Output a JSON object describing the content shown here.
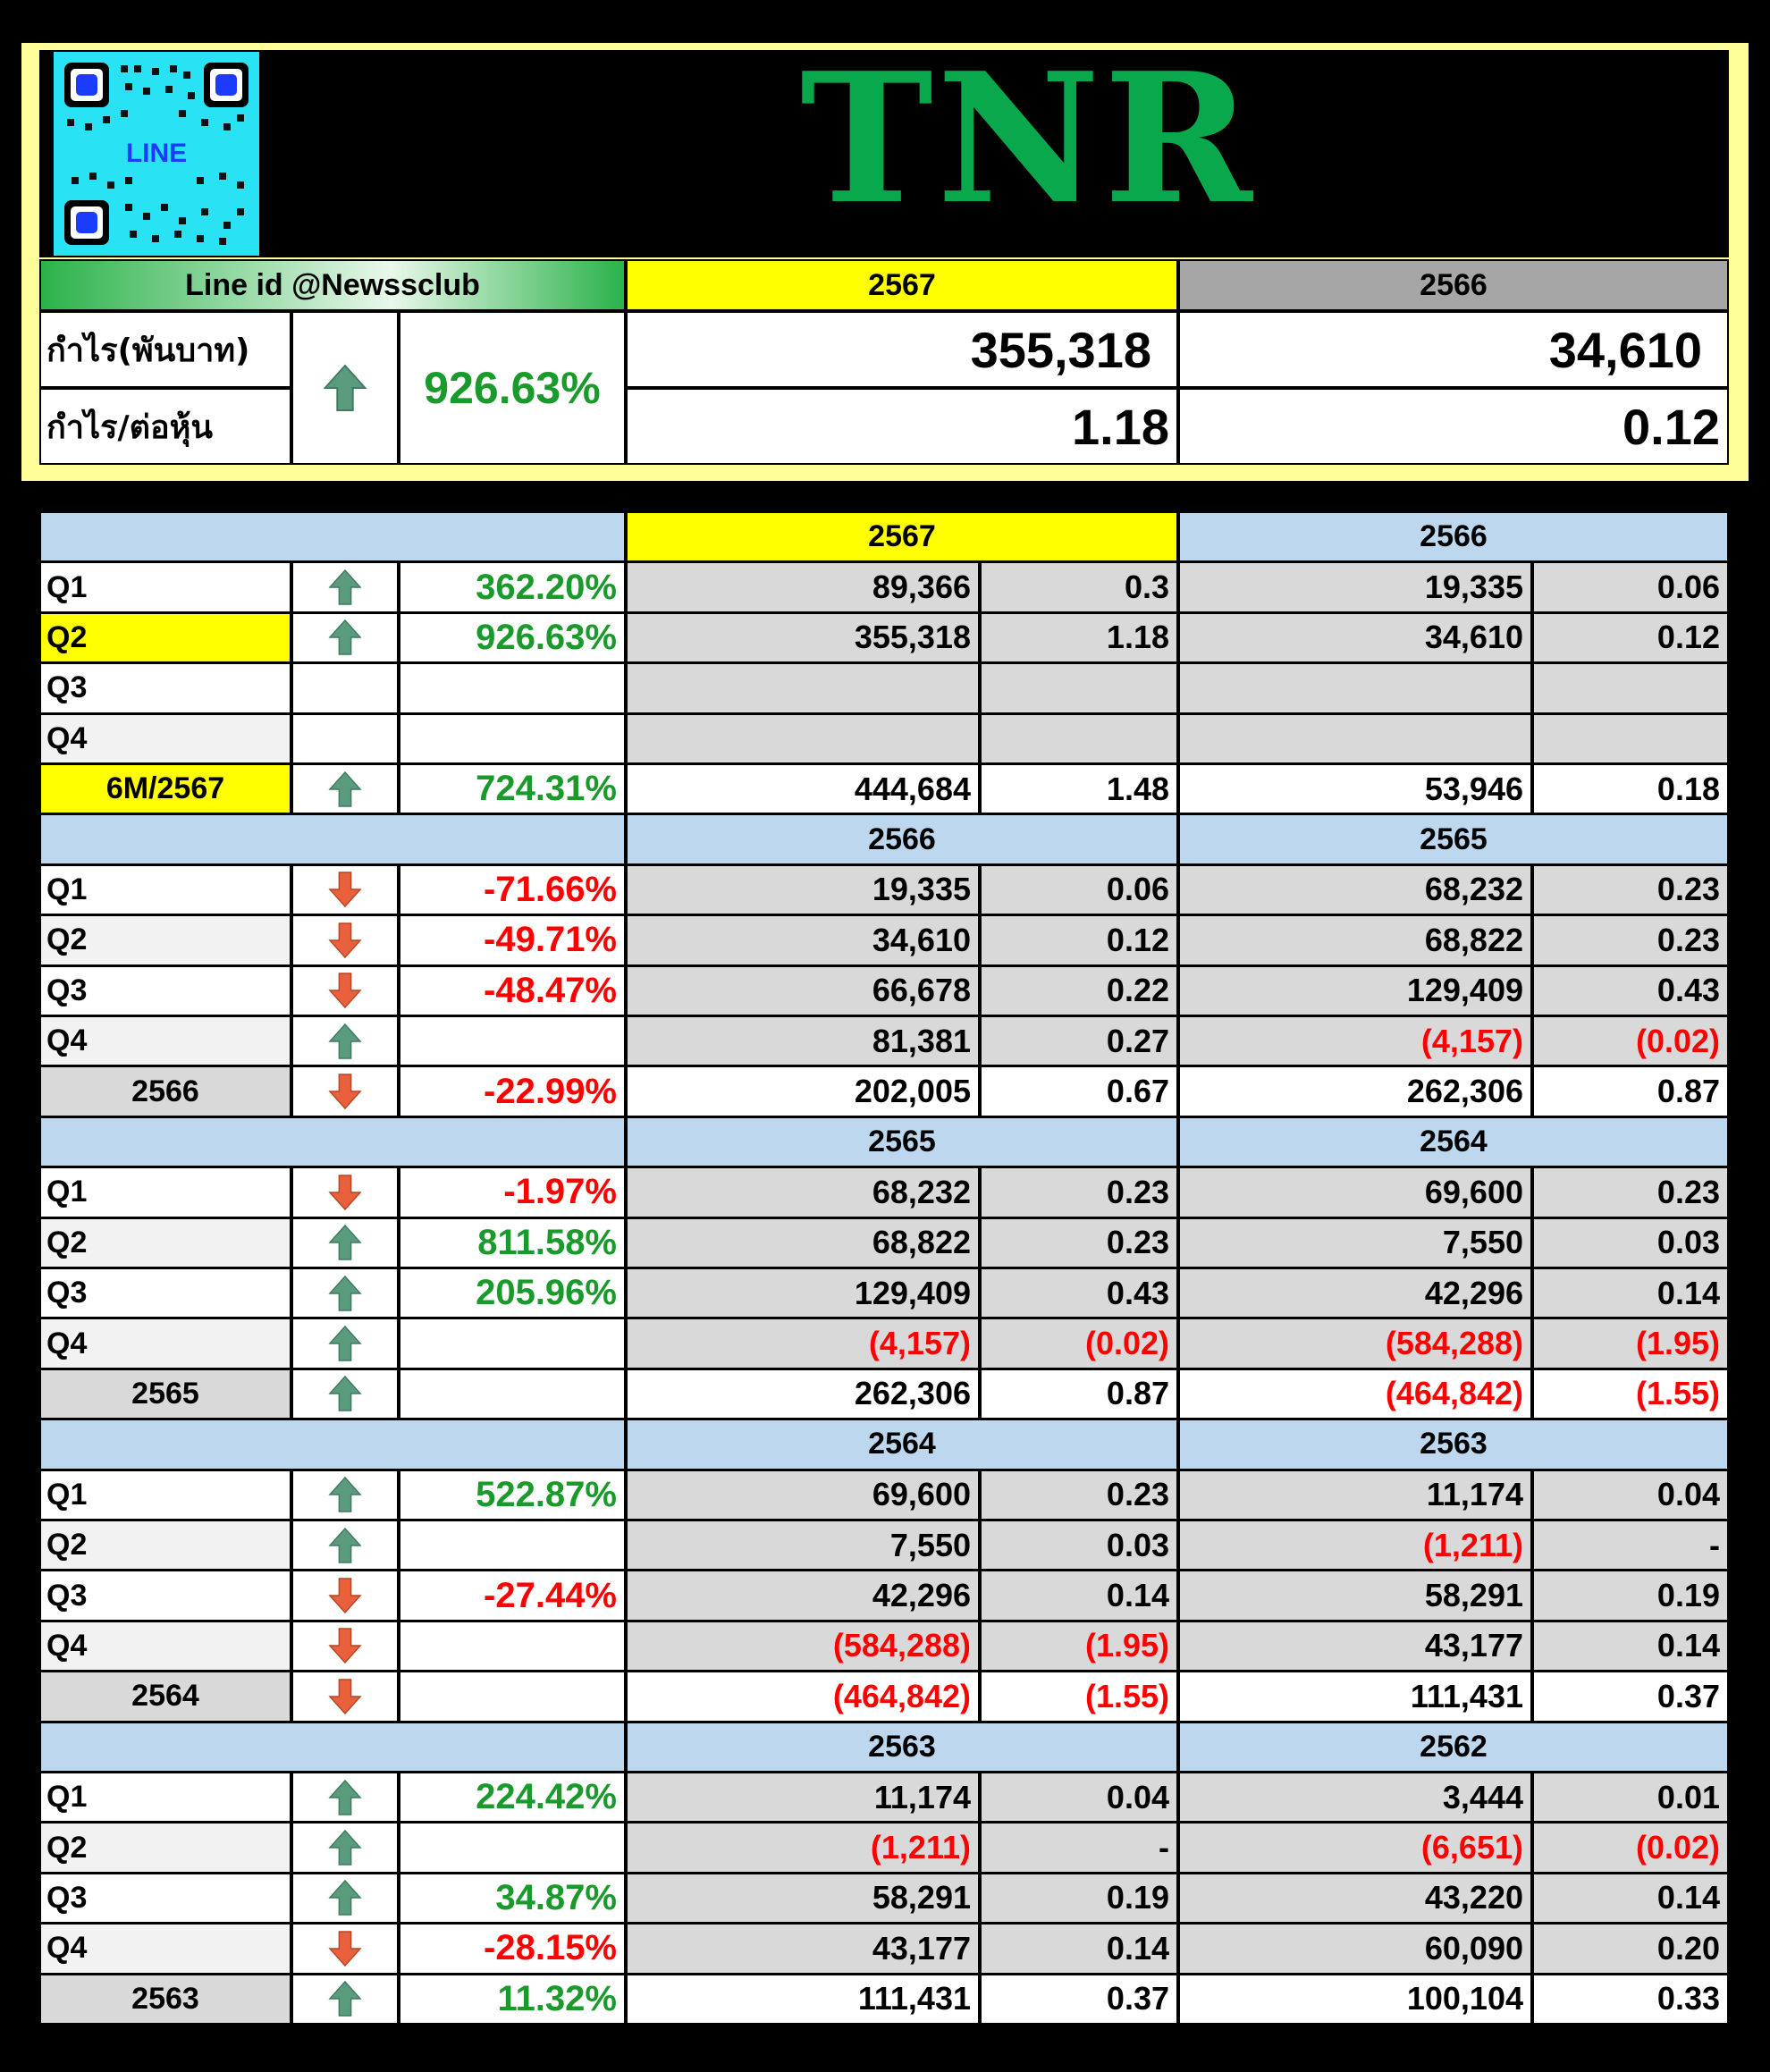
{
  "header": {
    "qr_label": "LINE",
    "ticker": "TNR",
    "line_id": "Line id @Newssclub",
    "year_current": "2567",
    "year_previous": "2566",
    "profit_label": "กำไร(พันบาท)",
    "eps_label": "กำไร/ต่อหุ้น",
    "change": "926.63%",
    "change_direction": "up",
    "profit_current": "355,318",
    "profit_previous": "34,610",
    "eps_current": "1.18",
    "eps_previous": "0.12"
  },
  "colors": {
    "up_arrow": "#5a9b7e",
    "down_arrow": "#e8603c",
    "positive_text": "#1a9a2a",
    "negative_text": "#ff0000",
    "section_header": "#bdd7ee",
    "highlight_yellow": "#ffff00",
    "gray_header": "#a6a6a6",
    "ticker_green": "#0aa84c"
  },
  "sections": [
    {
      "year_a": "2567",
      "year_b": "2566",
      "highlight": true,
      "rows": [
        {
          "label": "Q1",
          "dir": "up",
          "change": "362.20%",
          "profit_a": "89,366",
          "eps_a": "0.3",
          "profit_b": "19,335",
          "eps_b": "0.06"
        },
        {
          "label": "Q2",
          "dir": "up",
          "change": "926.63%",
          "profit_a": "355,318",
          "eps_a": "1.18",
          "profit_b": "34,610",
          "eps_b": "0.12",
          "label_highlight": true
        },
        {
          "label": "Q3",
          "dir": "",
          "change": "",
          "profit_a": "",
          "eps_a": "",
          "profit_b": "",
          "eps_b": ""
        },
        {
          "label": "Q4",
          "dir": "",
          "change": "",
          "profit_a": "",
          "eps_a": "",
          "profit_b": "",
          "eps_b": ""
        },
        {
          "label": "6M/2567",
          "dir": "up",
          "change": "724.31%",
          "profit_a": "444,684",
          "eps_a": "1.48",
          "profit_b": "53,946",
          "eps_b": "0.18",
          "total": true,
          "label_highlight": true
        }
      ]
    },
    {
      "year_a": "2566",
      "year_b": "2565",
      "rows": [
        {
          "label": "Q1",
          "dir": "down",
          "change": "-71.66%",
          "profit_a": "19,335",
          "eps_a": "0.06",
          "profit_b": "68,232",
          "eps_b": "0.23"
        },
        {
          "label": "Q2",
          "dir": "down",
          "change": "-49.71%",
          "profit_a": "34,610",
          "eps_a": "0.12",
          "profit_b": "68,822",
          "eps_b": "0.23"
        },
        {
          "label": "Q3",
          "dir": "down",
          "change": "-48.47%",
          "profit_a": "66,678",
          "eps_a": "0.22",
          "profit_b": "129,409",
          "eps_b": "0.43"
        },
        {
          "label": "Q4",
          "dir": "up",
          "change": "",
          "profit_a": "81,381",
          "eps_a": "0.27",
          "profit_b": "(4,157)",
          "eps_b": "(0.02)"
        },
        {
          "label": "2566",
          "dir": "down",
          "change": "-22.99%",
          "profit_a": "202,005",
          "eps_a": "0.67",
          "profit_b": "262,306",
          "eps_b": "0.87",
          "total": true
        }
      ]
    },
    {
      "year_a": "2565",
      "year_b": "2564",
      "rows": [
        {
          "label": "Q1",
          "dir": "down",
          "change": "-1.97%",
          "profit_a": "68,232",
          "eps_a": "0.23",
          "profit_b": "69,600",
          "eps_b": "0.23"
        },
        {
          "label": "Q2",
          "dir": "up",
          "change": "811.58%",
          "profit_a": "68,822",
          "eps_a": "0.23",
          "profit_b": "7,550",
          "eps_b": "0.03"
        },
        {
          "label": "Q3",
          "dir": "up",
          "change": "205.96%",
          "profit_a": "129,409",
          "eps_a": "0.43",
          "profit_b": "42,296",
          "eps_b": "0.14"
        },
        {
          "label": "Q4",
          "dir": "up",
          "change": "",
          "profit_a": "(4,157)",
          "eps_a": "(0.02)",
          "profit_b": "(584,288)",
          "eps_b": "(1.95)"
        },
        {
          "label": "2565",
          "dir": "up",
          "change": "",
          "profit_a": "262,306",
          "eps_a": "0.87",
          "profit_b": "(464,842)",
          "eps_b": "(1.55)",
          "total": true
        }
      ]
    },
    {
      "year_a": "2564",
      "year_b": "2563",
      "rows": [
        {
          "label": "Q1",
          "dir": "up",
          "change": "522.87%",
          "profit_a": "69,600",
          "eps_a": "0.23",
          "profit_b": "11,174",
          "eps_b": "0.04"
        },
        {
          "label": "Q2",
          "dir": "up",
          "change": "",
          "profit_a": "7,550",
          "eps_a": "0.03",
          "profit_b": "(1,211)",
          "eps_b": "-"
        },
        {
          "label": "Q3",
          "dir": "down",
          "change": "-27.44%",
          "profit_a": "42,296",
          "eps_a": "0.14",
          "profit_b": "58,291",
          "eps_b": "0.19"
        },
        {
          "label": "Q4",
          "dir": "down",
          "change": "",
          "profit_a": "(584,288)",
          "eps_a": "(1.95)",
          "profit_b": "43,177",
          "eps_b": "0.14"
        },
        {
          "label": "2564",
          "dir": "down",
          "change": "",
          "profit_a": "(464,842)",
          "eps_a": "(1.55)",
          "profit_b": "111,431",
          "eps_b": "0.37",
          "total": true
        }
      ]
    },
    {
      "year_a": "2563",
      "year_b": "2562",
      "rows": [
        {
          "label": "Q1",
          "dir": "up",
          "change": "224.42%",
          "profit_a": "11,174",
          "eps_a": "0.04",
          "profit_b": "3,444",
          "eps_b": "0.01"
        },
        {
          "label": "Q2",
          "dir": "up",
          "change": "",
          "profit_a": "(1,211)",
          "eps_a": "-",
          "profit_b": "(6,651)",
          "eps_b": "(0.02)"
        },
        {
          "label": "Q3",
          "dir": "up",
          "change": "34.87%",
          "profit_a": "58,291",
          "eps_a": "0.19",
          "profit_b": "43,220",
          "eps_b": "0.14"
        },
        {
          "label": "Q4",
          "dir": "down",
          "change": "-28.15%",
          "profit_a": "43,177",
          "eps_a": "0.14",
          "profit_b": "60,090",
          "eps_b": "0.20"
        },
        {
          "label": "2563",
          "dir": "up",
          "change": "11.32%",
          "profit_a": "111,431",
          "eps_a": "0.37",
          "profit_b": "100,104",
          "eps_b": "0.33",
          "total": true
        }
      ]
    }
  ]
}
